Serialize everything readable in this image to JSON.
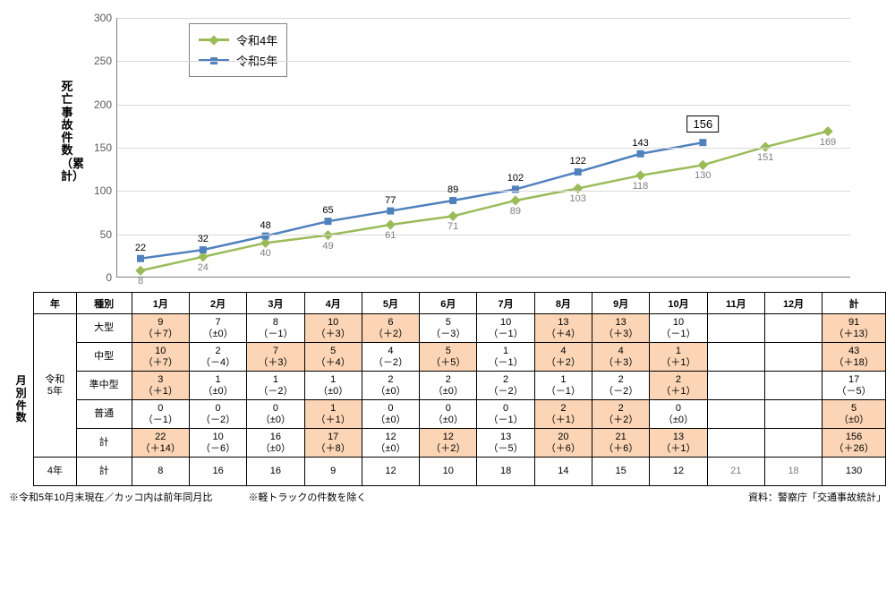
{
  "chart": {
    "type": "line",
    "y_title": "死亡事故件数（累計）",
    "ylim": [
      0,
      300
    ],
    "ytick_step": 50,
    "background_color": "#ffffff",
    "grid_color": "#d9d9d9",
    "axis_color": "#808080",
    "categories": [
      "1月",
      "2月",
      "3月",
      "4月",
      "5月",
      "6月",
      "7月",
      "8月",
      "9月",
      "10月",
      "11月",
      "12月"
    ],
    "series": [
      {
        "name": "令和4年",
        "label": "令和4年",
        "color": "#9bbb59",
        "marker": "diamond",
        "line_width": 2.5,
        "marker_size": 8,
        "label_position": "below",
        "label_color": "#7f7f7f",
        "values": [
          8,
          24,
          40,
          49,
          61,
          71,
          89,
          103,
          118,
          130,
          151,
          169
        ]
      },
      {
        "name": "令和5年",
        "label": "令和5年",
        "color": "#4f81bd",
        "marker": "square",
        "line_width": 2.5,
        "marker_size": 8,
        "label_position": "above",
        "label_color": "#000000",
        "values": [
          22,
          32,
          48,
          65,
          77,
          89,
          102,
          122,
          143,
          156
        ],
        "highlight_last": true
      }
    ],
    "legend_position": "top-left"
  },
  "table": {
    "side_label": "月別件数",
    "header": {
      "year": "年",
      "type": "種別",
      "months": [
        "1月",
        "2月",
        "3月",
        "4月",
        "5月",
        "6月",
        "7月",
        "8月",
        "9月",
        "10月",
        "11月",
        "12月"
      ],
      "total": "計"
    },
    "group_label": "令和5年",
    "rows": [
      {
        "label": "大型",
        "cells": [
          {
            "v": "9",
            "d": "（＋7）",
            "hl": true
          },
          {
            "v": "7",
            "d": "（±0）"
          },
          {
            "v": "8",
            "d": "（－1）"
          },
          {
            "v": "10",
            "d": "（＋3）",
            "hl": true
          },
          {
            "v": "6",
            "d": "（＋2）",
            "hl": true
          },
          {
            "v": "5",
            "d": "（－3）"
          },
          {
            "v": "10",
            "d": "（－1）"
          },
          {
            "v": "13",
            "d": "（＋4）",
            "hl": true
          },
          {
            "v": "13",
            "d": "（＋3）",
            "hl": true
          },
          {
            "v": "10",
            "d": "（－1）"
          },
          {
            "v": "",
            "d": ""
          },
          {
            "v": "",
            "d": ""
          }
        ],
        "total": {
          "v": "91",
          "d": "（＋13）",
          "hl": true
        }
      },
      {
        "label": "中型",
        "cells": [
          {
            "v": "10",
            "d": "（＋7）",
            "hl": true
          },
          {
            "v": "2",
            "d": "（－4）"
          },
          {
            "v": "7",
            "d": "（＋3）",
            "hl": true
          },
          {
            "v": "5",
            "d": "（＋4）",
            "hl": true
          },
          {
            "v": "4",
            "d": "（－2）"
          },
          {
            "v": "5",
            "d": "（＋5）",
            "hl": true
          },
          {
            "v": "1",
            "d": "（－1）"
          },
          {
            "v": "4",
            "d": "（＋2）",
            "hl": true
          },
          {
            "v": "4",
            "d": "（＋3）",
            "hl": true
          },
          {
            "v": "1",
            "d": "（＋1）",
            "hl": true
          },
          {
            "v": "",
            "d": ""
          },
          {
            "v": "",
            "d": ""
          }
        ],
        "total": {
          "v": "43",
          "d": "（＋18）",
          "hl": true
        }
      },
      {
        "label": "準中型",
        "cells": [
          {
            "v": "3",
            "d": "（＋1）",
            "hl": true
          },
          {
            "v": "1",
            "d": "（±0）"
          },
          {
            "v": "1",
            "d": "（－2）"
          },
          {
            "v": "1",
            "d": "（±0）"
          },
          {
            "v": "2",
            "d": "（±0）"
          },
          {
            "v": "2",
            "d": "（±0）"
          },
          {
            "v": "2",
            "d": "（－2）"
          },
          {
            "v": "1",
            "d": "（－1）"
          },
          {
            "v": "2",
            "d": "（－2）"
          },
          {
            "v": "2",
            "d": "（＋1）",
            "hl": true
          },
          {
            "v": "",
            "d": ""
          },
          {
            "v": "",
            "d": ""
          }
        ],
        "total": {
          "v": "17",
          "d": "（－5）"
        }
      },
      {
        "label": "普通",
        "cells": [
          {
            "v": "0",
            "d": "（－1）"
          },
          {
            "v": "0",
            "d": "（－2）"
          },
          {
            "v": "0",
            "d": "（±0）"
          },
          {
            "v": "1",
            "d": "（＋1）",
            "hl": true
          },
          {
            "v": "0",
            "d": "（±0）"
          },
          {
            "v": "0",
            "d": "（±0）"
          },
          {
            "v": "0",
            "d": "（－1）"
          },
          {
            "v": "2",
            "d": "（＋1）",
            "hl": true
          },
          {
            "v": "2",
            "d": "（＋2）",
            "hl": true
          },
          {
            "v": "0",
            "d": "（±0）"
          },
          {
            "v": "",
            "d": ""
          },
          {
            "v": "",
            "d": ""
          }
        ],
        "total": {
          "v": "5",
          "d": "（±0）",
          "hl": true
        }
      },
      {
        "label": "計",
        "cells": [
          {
            "v": "22",
            "d": "（＋14）",
            "hl": true
          },
          {
            "v": "10",
            "d": "（－6）"
          },
          {
            "v": "16",
            "d": "（±0）"
          },
          {
            "v": "17",
            "d": "（＋8）",
            "hl": true
          },
          {
            "v": "12",
            "d": "（±0）"
          },
          {
            "v": "12",
            "d": "（＋2）",
            "hl": true
          },
          {
            "v": "13",
            "d": "（－5）"
          },
          {
            "v": "20",
            "d": "（＋6）",
            "hl": true
          },
          {
            "v": "21",
            "d": "（＋6）",
            "hl": true
          },
          {
            "v": "13",
            "d": "（＋1）",
            "hl": true
          },
          {
            "v": "",
            "d": ""
          },
          {
            "v": "",
            "d": ""
          }
        ],
        "total": {
          "v": "156",
          "d": "（＋26）",
          "hl": true
        }
      }
    ],
    "row_4nen": {
      "year": "4年",
      "label": "計",
      "cells": [
        "8",
        "16",
        "16",
        "9",
        "12",
        "10",
        "18",
        "14",
        "15",
        "12",
        "21",
        "18"
      ],
      "gray_from": 10,
      "total": "130"
    }
  },
  "footnotes": {
    "left1": "※令和5年10月末現在／カッコ内は前年同月比",
    "left2": "※軽トラックの件数を除く",
    "right": "資料：警察庁「交通事故統計」"
  }
}
